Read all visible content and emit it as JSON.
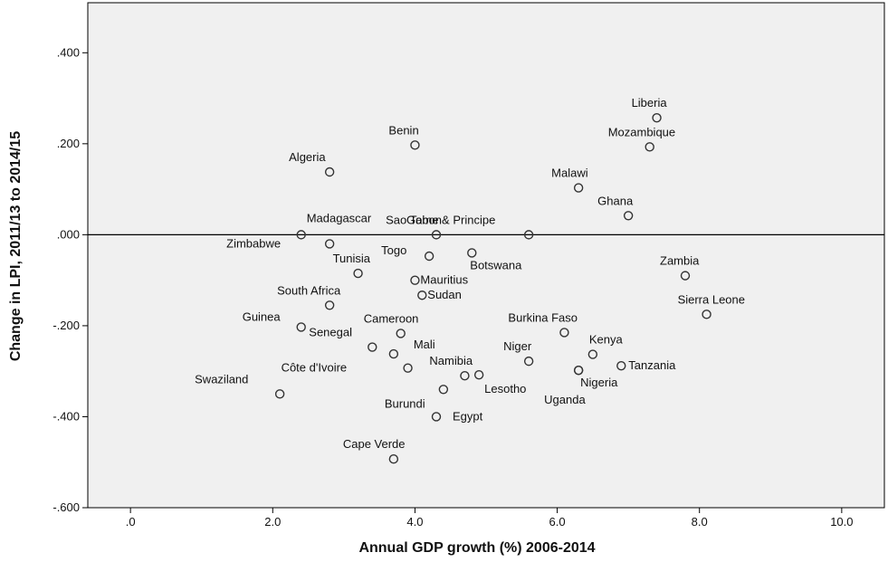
{
  "chart_data": {
    "type": "scatter",
    "xlabel": "Annual GDP growth (%) 2006-2014",
    "ylabel": "Change in LPI, 2011/13 to 2014/15",
    "xlim": [
      -0.6,
      10.6
    ],
    "ylim": [
      -0.6,
      0.51
    ],
    "x_ticks": [
      0,
      2,
      4,
      6,
      8,
      10
    ],
    "x_tick_labels": [
      ".0",
      "2.0",
      "4.0",
      "6.0",
      "8.0",
      "10.0"
    ],
    "y_ticks": [
      0.4,
      0.2,
      0.0,
      -0.2,
      -0.4,
      -0.6
    ],
    "y_tick_labels": [
      ".400",
      ".200",
      ".000",
      "-.200",
      "-.400",
      "-.600"
    ],
    "reference_line_y": 0.0,
    "grid": false,
    "background_color": "#f0f0f0",
    "marker_color": "#333333",
    "points": [
      {
        "label": "Liberia",
        "x": 7.4,
        "y": 0.257
      },
      {
        "label": "Mozambique",
        "x": 7.3,
        "y": 0.193
      },
      {
        "label": "Benin",
        "x": 4.0,
        "y": 0.197
      },
      {
        "label": "Algeria",
        "x": 2.8,
        "y": 0.138
      },
      {
        "label": "Malawi",
        "x": 6.3,
        "y": 0.103
      },
      {
        "label": "Ghana",
        "x": 7.0,
        "y": 0.042
      },
      {
        "label": "Sao Tome & Principe",
        "x": 5.6,
        "y": 0.0
      },
      {
        "label": "Madagascar",
        "x": 2.4,
        "y": 0.0
      },
      {
        "label": "Gabon",
        "x": 4.3,
        "y": 0.0
      },
      {
        "label": "Zimbabwe",
        "x": 2.8,
        "y": -0.02
      },
      {
        "label": "Togo",
        "x": 4.2,
        "y": -0.047
      },
      {
        "label": "Botswana",
        "x": 4.8,
        "y": -0.04
      },
      {
        "label": "Tunisia",
        "x": 3.2,
        "y": -0.085
      },
      {
        "label": "Mauritius",
        "x": 4.0,
        "y": -0.1
      },
      {
        "label": "Sudan",
        "x": 4.1,
        "y": -0.133
      },
      {
        "label": "South Africa",
        "x": 2.8,
        "y": -0.155
      },
      {
        "label": "Zambia",
        "x": 7.8,
        "y": -0.09
      },
      {
        "label": "Sierra Leone",
        "x": 8.1,
        "y": -0.175
      },
      {
        "label": "Guinea",
        "x": 2.4,
        "y": -0.203
      },
      {
        "label": "Cameroon",
        "x": 3.8,
        "y": -0.217
      },
      {
        "label": "Senegal",
        "x": 3.4,
        "y": -0.247
      },
      {
        "label": "Mali",
        "x": 3.7,
        "y": -0.262
      },
      {
        "label": "Côte d'Ivoire",
        "x": 3.9,
        "y": -0.293
      },
      {
        "label": "Burkina Faso",
        "x": 6.1,
        "y": -0.215
      },
      {
        "label": "Kenya",
        "x": 6.5,
        "y": -0.263
      },
      {
        "label": "Niger",
        "x": 5.6,
        "y": -0.278
      },
      {
        "label": "Tanzania",
        "x": 6.9,
        "y": -0.288
      },
      {
        "label": "Nigeria",
        "x": 6.3,
        "y": -0.298
      },
      {
        "label": "Uganda",
        "x": 6.3,
        "y": -0.298
      },
      {
        "label": "Namibia",
        "x": 4.7,
        "y": -0.31
      },
      {
        "label": "Lesotho",
        "x": 4.9,
        "y": -0.308
      },
      {
        "label": "Burundi",
        "x": 4.4,
        "y": -0.34
      },
      {
        "label": "Swaziland",
        "x": 2.1,
        "y": -0.35
      },
      {
        "label": "Egypt",
        "x": 4.3,
        "y": -0.4
      },
      {
        "label": "Cape Verde",
        "x": 3.7,
        "y": -0.493
      }
    ]
  }
}
